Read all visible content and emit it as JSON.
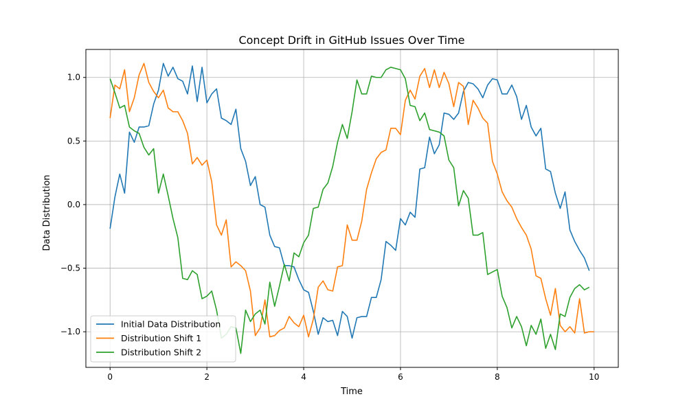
{
  "chart_data": {
    "type": "line",
    "title": "Concept Drift in GitHub Issues Over Time",
    "xlabel": "Time",
    "ylabel": "Data Distribution",
    "xlim": [
      -0.5,
      10.5
    ],
    "ylim": [
      -1.28,
      1.22
    ],
    "x_ticks": [
      0,
      2,
      4,
      6,
      8,
      10
    ],
    "x_tick_labels": [
      "0",
      "2",
      "4",
      "6",
      "8",
      "10"
    ],
    "y_ticks": [
      -1.0,
      -0.5,
      0.0,
      0.5,
      1.0
    ],
    "y_tick_labels": [
      "−1.0",
      "−0.5",
      "0.0",
      "0.5",
      "1.0"
    ],
    "grid": true,
    "legend_position": "lower-left",
    "x_start": 0,
    "x_step": 0.1,
    "series": [
      {
        "name": "Initial Data Distribution",
        "color": "#1f77b4",
        "values": [
          -0.19,
          0.06,
          0.24,
          0.09,
          0.57,
          0.49,
          0.61,
          0.61,
          0.62,
          0.79,
          0.9,
          1.11,
          1.01,
          1.08,
          0.99,
          0.97,
          0.87,
          1.09,
          0.81,
          1.08,
          0.8,
          0.87,
          0.91,
          0.68,
          0.66,
          0.63,
          0.75,
          0.44,
          0.34,
          0.15,
          0.22,
          0.0,
          -0.02,
          -0.24,
          -0.33,
          -0.34,
          -0.48,
          -0.48,
          -0.49,
          -0.59,
          -0.67,
          -0.69,
          -0.84,
          -1.02,
          -0.89,
          -0.92,
          -0.91,
          -1.03,
          -0.84,
          -0.88,
          -1.05,
          -0.89,
          -0.88,
          -0.88,
          -0.73,
          -0.73,
          -0.59,
          -0.29,
          -0.32,
          -0.36,
          -0.11,
          -0.16,
          -0.06,
          -0.1,
          0.28,
          0.29,
          0.53,
          0.4,
          0.47,
          0.72,
          0.71,
          0.67,
          0.72,
          0.89,
          0.96,
          0.95,
          0.91,
          0.84,
          0.94,
          0.99,
          0.98,
          0.87,
          0.87,
          0.94,
          0.85,
          0.67,
          0.78,
          0.61,
          0.54,
          0.6,
          0.28,
          0.26,
          0.09,
          -0.03,
          0.1,
          -0.2,
          -0.29,
          -0.36,
          -0.42,
          -0.52
        ]
      },
      {
        "name": "Distribution Shift 1",
        "color": "#ff7f0e",
        "values": [
          0.68,
          0.94,
          0.91,
          1.06,
          0.73,
          0.84,
          1.02,
          1.11,
          0.96,
          0.89,
          0.84,
          0.9,
          0.76,
          0.73,
          0.73,
          0.66,
          0.56,
          0.32,
          0.37,
          0.31,
          0.35,
          0.18,
          -0.16,
          -0.24,
          -0.12,
          -0.49,
          -0.45,
          -0.48,
          -0.52,
          -0.68,
          -1.03,
          -0.97,
          -0.75,
          -1.04,
          -1.03,
          -0.99,
          -0.97,
          -0.88,
          -0.93,
          -0.96,
          -0.87,
          -1.04,
          -0.9,
          -0.65,
          -0.6,
          -0.67,
          -0.68,
          -0.49,
          -0.48,
          -0.16,
          -0.28,
          -0.28,
          -0.13,
          0.12,
          0.25,
          0.36,
          0.41,
          0.43,
          0.6,
          0.6,
          0.55,
          0.82,
          0.9,
          0.83,
          1.01,
          1.07,
          0.92,
          1.06,
          0.92,
          1.04,
          0.95,
          0.77,
          0.96,
          0.93,
          0.63,
          0.82,
          0.76,
          0.68,
          0.64,
          0.34,
          0.24,
          0.1,
          0.03,
          -0.02,
          -0.11,
          -0.18,
          -0.24,
          -0.35,
          -0.56,
          -0.58,
          -0.74,
          -0.87,
          -0.66,
          -0.95,
          -1.0,
          -0.96,
          -1.01,
          -0.74,
          -1.01,
          -1.0,
          -1.0
        ]
      },
      {
        "name": "Distribution Shift 2",
        "color": "#2ca02c",
        "values": [
          0.99,
          0.88,
          0.76,
          0.78,
          0.61,
          0.58,
          0.56,
          0.45,
          0.39,
          0.44,
          0.09,
          0.24,
          0.07,
          -0.11,
          -0.26,
          -0.58,
          -0.59,
          -0.52,
          -0.55,
          -0.74,
          -0.72,
          -0.68,
          -0.83,
          -1.05,
          -1.02,
          -0.96,
          -0.97,
          -1.17,
          -0.83,
          -0.92,
          -0.86,
          -0.83,
          -0.94,
          -0.61,
          -0.8,
          -0.64,
          -0.47,
          -0.6,
          -0.38,
          -0.41,
          -0.3,
          -0.24,
          -0.03,
          -0.02,
          0.12,
          0.17,
          0.3,
          0.49,
          0.63,
          0.52,
          0.73,
          0.98,
          0.87,
          0.87,
          1.01,
          1.0,
          1.0,
          1.06,
          1.08,
          1.07,
          1.06,
          0.99,
          0.78,
          0.77,
          0.66,
          0.72,
          0.59,
          0.58,
          0.57,
          0.54,
          0.35,
          0.29,
          -0.01,
          0.11,
          0.05,
          -0.24,
          -0.24,
          -0.22,
          -0.55,
          -0.53,
          -0.51,
          -0.72,
          -0.81,
          -0.97,
          -0.88,
          -0.96,
          -1.11,
          -0.95,
          -1.02,
          -0.9,
          -1.13,
          -1.02,
          -1.14,
          -0.86,
          -0.88,
          -0.73,
          -0.66,
          -0.63,
          -0.67,
          -0.65
        ]
      }
    ]
  }
}
